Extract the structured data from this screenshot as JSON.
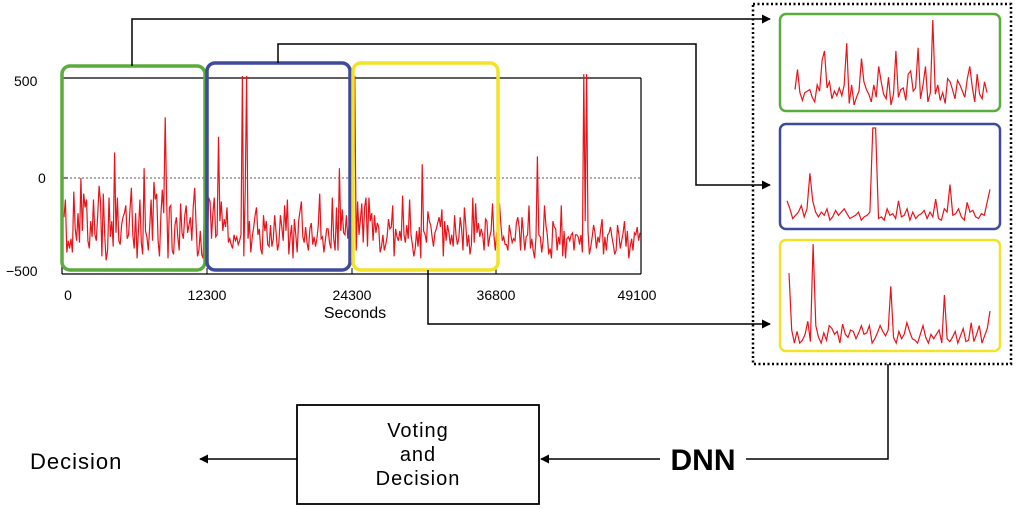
{
  "chart": {
    "xlabel": "Seconds",
    "x_ticks": [
      "0",
      "12300",
      "24300",
      "36800",
      "49100"
    ],
    "y_ticks": [
      "500",
      "0",
      "−500"
    ],
    "ylim": [
      -500,
      500
    ],
    "xlim": [
      0,
      49100
    ],
    "trace_color": "#e8141b"
  },
  "windows": [
    {
      "name": "window-1",
      "color": "#5aac3c"
    },
    {
      "name": "window-2",
      "color": "#3f4a9a"
    },
    {
      "name": "window-3",
      "color": "#f2e32a"
    }
  ],
  "process": {
    "dnn_label": "DNN",
    "voting_lines": [
      "Voting",
      "and",
      "Decision"
    ],
    "decision_label": "Decision"
  },
  "signals": {
    "main": [
      -210,
      -120,
      -390,
      -330,
      -370,
      -320,
      -390,
      -80,
      -270,
      -330,
      -190,
      -340,
      -10,
      -280,
      -90,
      -160,
      -120,
      -330,
      -370,
      -230,
      -310,
      -120,
      -300,
      -330,
      -200,
      -50,
      -130,
      -410,
      -90,
      -300,
      -430,
      -380,
      -110,
      -310,
      -230,
      -360,
      120,
      -290,
      -110,
      -330,
      -350,
      -250,
      -210,
      -190,
      -150,
      -320,
      -300,
      -170,
      -60,
      -300,
      -370,
      -190,
      -420,
      -270,
      -120,
      -340,
      -400,
      40,
      -280,
      -310,
      -380,
      -260,
      -120,
      -330,
      -30,
      -120,
      -90,
      -330,
      -410,
      -200,
      -70,
      -190,
      300,
      -110,
      -420,
      -160,
      -150,
      -380,
      -400,
      -250,
      -210,
      -310,
      -380,
      -140,
      -290,
      -320,
      -200,
      -150,
      -290,
      -250,
      -210,
      -330,
      -160,
      -60,
      -250,
      -410,
      -380,
      -280,
      -400,
      -420,
      -150,
      -300,
      -350,
      -110,
      -130,
      -320,
      -190,
      -110,
      -310,
      -300,
      200,
      -230,
      -130,
      -280,
      -220,
      -260,
      -160,
      -340,
      -320,
      -350,
      -370,
      -300,
      -330,
      -310,
      -350,
      -330,
      -300,
      510,
      -410,
      -80,
      510,
      -320,
      -230,
      -390,
      -310,
      -260,
      -200,
      -160,
      -300,
      -270,
      -370,
      -400,
      -200,
      -280,
      -230,
      -350,
      -360,
      -250,
      -360,
      -320,
      -200,
      -290,
      -380,
      -340,
      -200,
      -260,
      -330,
      -150,
      -280,
      -120,
      -400,
      -310,
      -250,
      -420,
      -220,
      -300,
      -390,
      -230,
      -180,
      -130,
      -310,
      -340,
      -260,
      -340,
      -380,
      -270,
      -240,
      -350,
      -310,
      -360,
      -320,
      -250,
      -90,
      -320,
      -310,
      -390,
      -330,
      -270,
      -270,
      -340,
      -370,
      -110,
      -320,
      -380,
      -160,
      -380,
      40,
      -280,
      -170,
      -290,
      -300,
      -200,
      -320,
      -250,
      -150,
      -120,
      -310,
      510,
      -380,
      -130,
      -300,
      -220,
      -140,
      -340,
      -160,
      -110,
      -360,
      -110,
      -230,
      -190,
      -330,
      -200,
      -290,
      -240,
      -260,
      -390,
      -360,
      -300,
      -380,
      -350,
      -310,
      -220,
      -270,
      -260,
      -150,
      -410,
      -270,
      -310,
      -330,
      -280,
      -330,
      -100,
      -300,
      -340,
      -250,
      -320,
      -120,
      -300,
      -350,
      -410,
      -370,
      -280,
      -360,
      -260,
      -420,
      60,
      -280,
      -300,
      -340,
      -180,
      -230,
      -250,
      -310,
      -360,
      -290,
      -270,
      -240,
      -210,
      -260,
      -170,
      -410,
      -230,
      -330,
      -250,
      -290,
      -350,
      -300,
      -360,
      -200,
      -300,
      -350,
      -320,
      -210,
      -270,
      -380,
      -160,
      -250,
      -360,
      -300,
      -400,
      -350,
      -110,
      -340,
      -140,
      -290,
      -240,
      -310,
      -270,
      -300,
      -380,
      -220,
      -230,
      -360,
      -310,
      -280,
      -140,
      -300,
      -380,
      -290,
      -260,
      -140,
      -250,
      -330,
      -310,
      -350,
      -350,
      -380,
      -250,
      -300,
      -340,
      -320,
      -330,
      -240,
      -210,
      -260,
      -380,
      -210,
      -290,
      -380,
      -310,
      -300,
      -150,
      -370,
      -320,
      -380,
      -420,
      -310,
      100,
      -300,
      -310,
      -390,
      -330,
      -150,
      -250,
      -300,
      -400,
      -370,
      -420,
      -230,
      -260,
      -270,
      -380,
      -310,
      -350,
      -150,
      -410,
      -280,
      -420,
      -320,
      -310,
      -330,
      -300,
      -290,
      -380,
      -300,
      -300,
      -310,
      -350,
      -300,
      -390,
      520,
      -230,
      520,
      -280,
      -400,
      -360,
      -310,
      -250,
      -290,
      -370,
      -310,
      -340,
      -270,
      -220,
      -400,
      -310,
      -380,
      -300,
      -290,
      -260,
      -310,
      -350,
      -400,
      -380,
      -250,
      -300,
      -370,
      -330,
      -290,
      -230,
      -360,
      -280,
      -420,
      -360,
      -320,
      -380,
      -290,
      -300,
      -260,
      -330,
      -290
    ],
    "window_1": [
      50,
      180,
      30,
      -20,
      30,
      40,
      50,
      0,
      -30,
      80,
      40,
      240,
      300,
      60,
      100,
      -10,
      40,
      10,
      60,
      10,
      80,
      350,
      -40,
      80,
      -50,
      0,
      40,
      250,
      100,
      50,
      20,
      -30,
      80,
      0,
      200,
      100,
      20,
      -10,
      130,
      -50,
      20,
      300,
      0,
      50,
      60,
      -20,
      150,
      170,
      40,
      60,
      320,
      -10,
      80,
      200,
      -30,
      30,
      500,
      20,
      80,
      -20,
      30,
      -40,
      120,
      100,
      50,
      -10,
      110,
      80,
      40,
      0,
      120,
      200,
      70,
      -30,
      150,
      20,
      -10,
      100,
      30
    ],
    "window_2": [
      -50,
      -100,
      -160,
      -140,
      -120,
      -80,
      -150,
      -100,
      120,
      -50,
      -120,
      -150,
      -120,
      -140,
      -100,
      -170,
      -150,
      -110,
      -140,
      -120,
      -100,
      -130,
      -160,
      -150,
      -140,
      -120,
      -170,
      -150,
      -140,
      -120,
      400,
      400,
      -160,
      -150,
      -170,
      -100,
      -140,
      -130,
      -160,
      -50,
      -150,
      -140,
      -100,
      -170,
      -120,
      -160,
      -140,
      -130,
      -110,
      -160,
      -120,
      -150,
      -40,
      -160,
      -170,
      -100,
      -120,
      50,
      -140,
      -130,
      -100,
      -150,
      -170,
      -60,
      -120,
      -110,
      -150,
      -160,
      -130,
      -140,
      -60,
      20
    ],
    "window_3": [
      300,
      -90,
      -180,
      -100,
      -180,
      -160,
      -120,
      -30,
      -170,
      500,
      -60,
      -140,
      -180,
      -110,
      -160,
      -60,
      -80,
      -120,
      -100,
      -180,
      -50,
      -120,
      -140,
      -90,
      -100,
      -150,
      -110,
      -60,
      -120,
      -110,
      -60,
      -180,
      -150,
      -110,
      -60,
      -100,
      -130,
      -90,
      210,
      -140,
      -180,
      -100,
      -150,
      -120,
      -40,
      -100,
      -150,
      -160,
      -180,
      -120,
      -60,
      -140,
      -180,
      -120,
      -150,
      -120,
      -90,
      -180,
      150,
      -150,
      -170,
      -140,
      -100,
      -180,
      -130,
      -80,
      -170,
      -160,
      -40,
      -170,
      -120,
      -60,
      -180,
      -130,
      -80,
      40
    ]
  }
}
